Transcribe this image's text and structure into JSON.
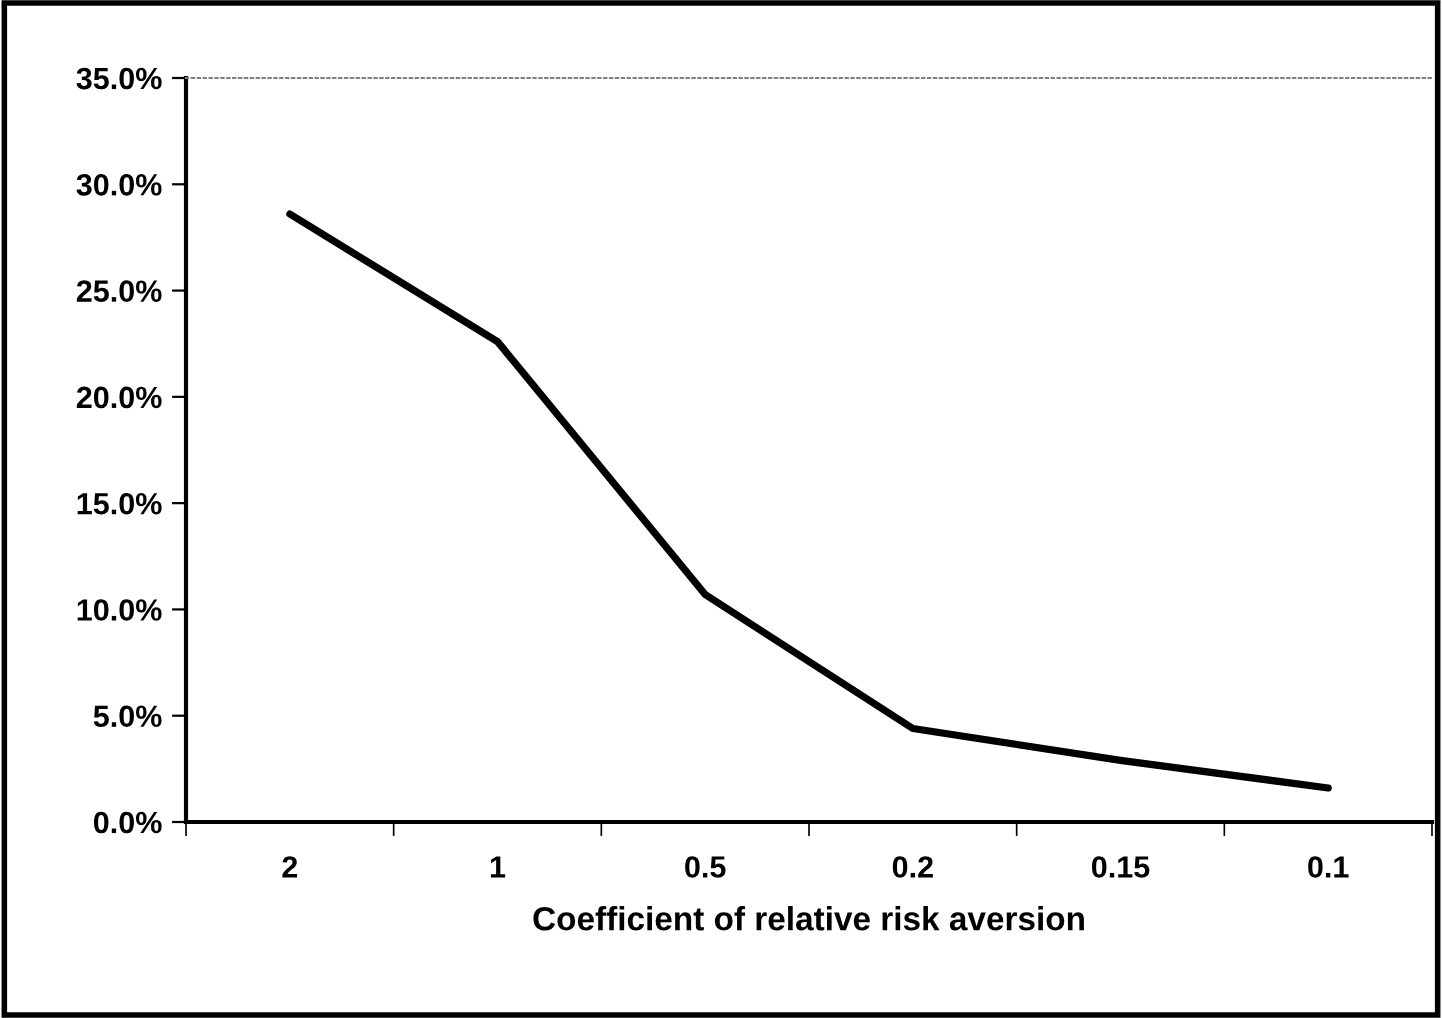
{
  "chart_data": {
    "type": "line",
    "xlabel": "Coefficient of relative risk aversion",
    "categories": [
      "2",
      "1",
      "0.5",
      "0.2",
      "0.15",
      "0.1"
    ],
    "series": [
      {
        "color": "#000000",
        "values": [
          28.6,
          22.6,
          10.7,
          4.4,
          2.9,
          1.6
        ]
      }
    ],
    "ylim": [
      0,
      35
    ],
    "yticks": [
      {
        "value": 0,
        "label": "0.0%"
      },
      {
        "value": 5,
        "label": "5.0%"
      },
      {
        "value": 10,
        "label": "10.0%"
      },
      {
        "value": 15,
        "label": "15.0%"
      },
      {
        "value": 20,
        "label": "20.0%"
      },
      {
        "value": 25,
        "label": "25.0%"
      },
      {
        "value": 30,
        "label": "30.0%"
      },
      {
        "value": 35,
        "label": "35.0%"
      }
    ],
    "marker": "none",
    "line_style": "solid"
  }
}
